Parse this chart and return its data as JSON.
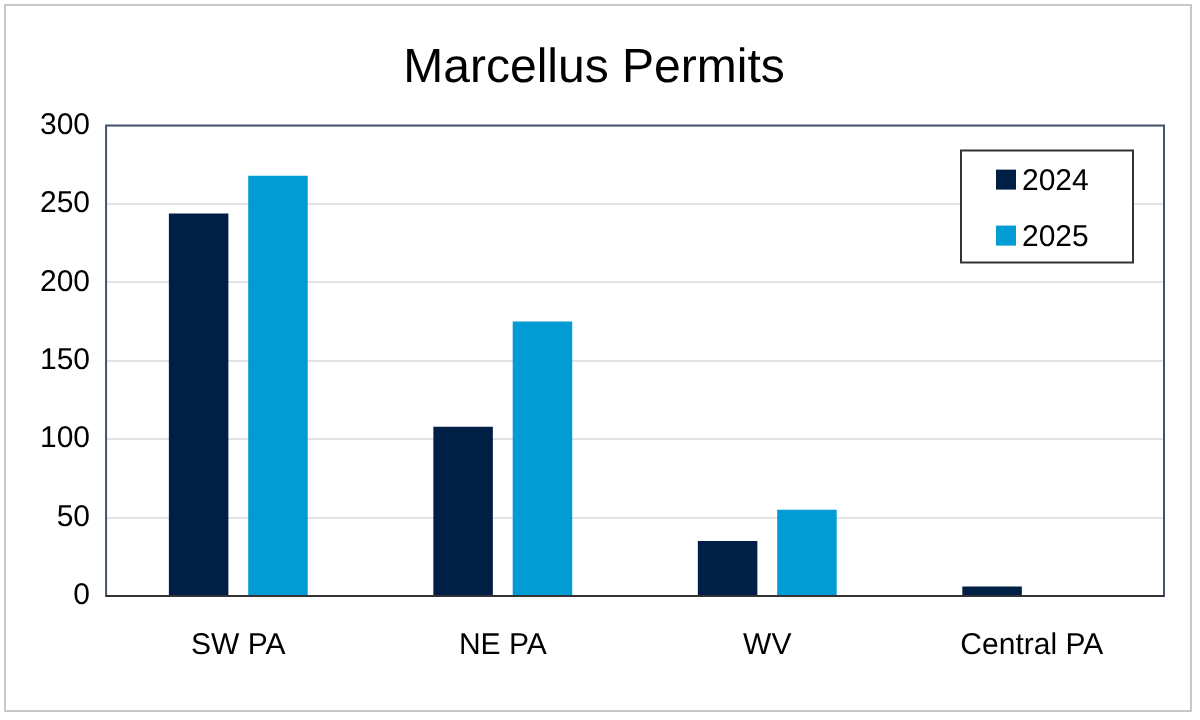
{
  "chart_data": {
    "type": "bar",
    "title": "Marcellus Permits",
    "categories": [
      "SW PA",
      "NE PA",
      "WV",
      "Central PA"
    ],
    "series": [
      {
        "name": "2024",
        "color": "#001f45",
        "values": [
          244,
          108,
          35,
          6
        ]
      },
      {
        "name": "2025",
        "color": "#009cd3",
        "values": [
          268,
          175,
          55,
          0
        ]
      }
    ],
    "ylim": [
      0,
      300
    ],
    "yticks": [
      0,
      50,
      100,
      150,
      200,
      250,
      300
    ],
    "grid": "y",
    "legend": "top right"
  }
}
